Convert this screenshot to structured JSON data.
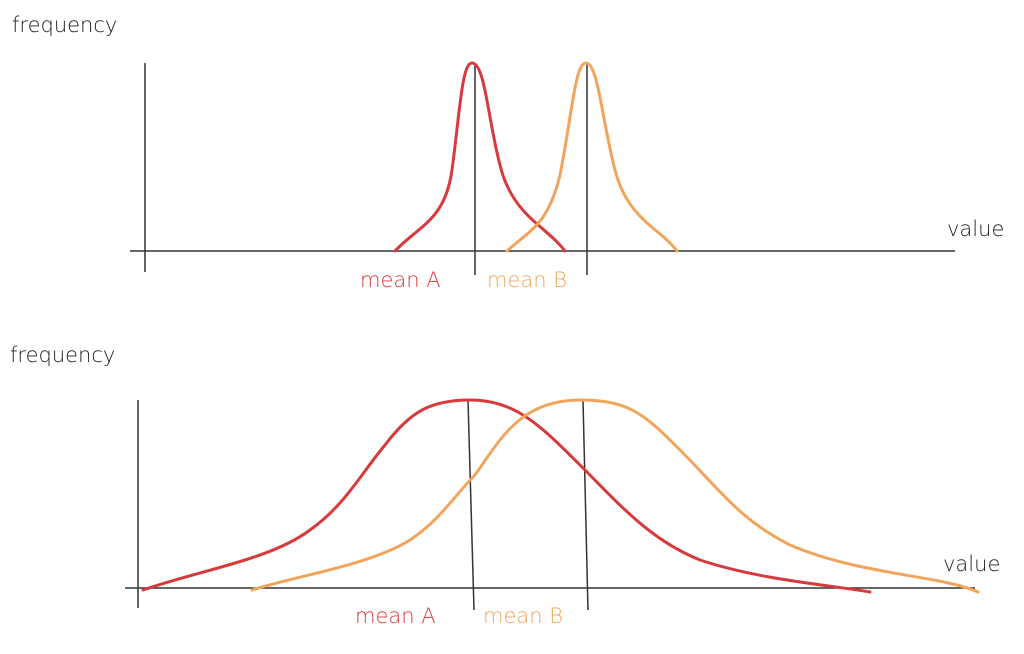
{
  "panels": [
    {
      "y_label": "frequency",
      "x_label": "value",
      "labels": [
        "mean A",
        "mean B"
      ]
    },
    {
      "y_label": "frequency",
      "x_label": "value",
      "labels": [
        "mean A",
        "mean B"
      ]
    }
  ]
}
